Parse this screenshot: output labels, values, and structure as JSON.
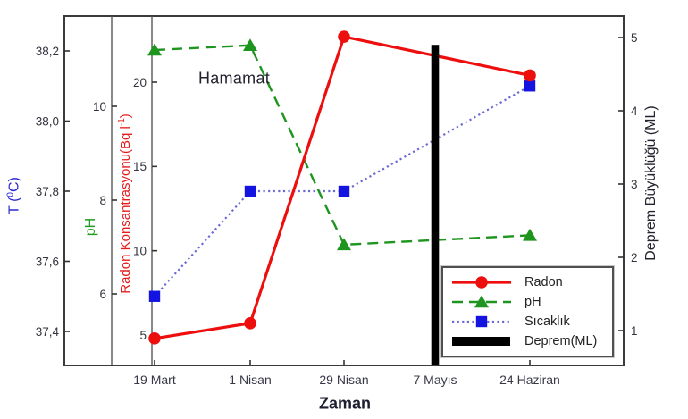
{
  "annotation": {
    "text": "Hamamat"
  },
  "axes": {
    "x": {
      "label": "Zaman",
      "categories": [
        "19 Mart",
        "1 Nisan",
        "29 Nisan",
        "7 Mayıs",
        "24 Haziran"
      ]
    },
    "temp": {
      "label_parts": {
        "pre": "T (",
        "sup": "0",
        "post": "C)"
      },
      "color": "#2b2bd1",
      "tick_values": [
        38.2,
        38.0,
        37.8,
        37.6,
        37.4
      ],
      "tick_labels": [
        "38,2",
        "38,0",
        "37,8",
        "37,6",
        "37,4"
      ]
    },
    "ph": {
      "label": "pH",
      "color": "#1f9e1f",
      "tick_values": [
        10,
        8,
        6
      ],
      "tick_labels": [
        "10",
        "8",
        "6"
      ]
    },
    "radon": {
      "label_parts": {
        "pre": "Radon Konsantrasyonu(Bq l",
        "sup": "-1",
        "post": ")"
      },
      "color": "#e51c1c",
      "tick_values": [
        20,
        15,
        10,
        5
      ],
      "tick_labels": [
        "20",
        "15",
        "10",
        "5"
      ]
    },
    "magnitude": {
      "label": "Deprem Büyüklüğü (ML)",
      "color": "#242430",
      "tick_values": [
        5,
        4,
        3,
        2,
        1
      ],
      "tick_labels": [
        "5",
        "4",
        "3",
        "2",
        "1"
      ]
    }
  },
  "legend": {
    "items": [
      {
        "label": "Radon"
      },
      {
        "label": "pH"
      },
      {
        "label": "Sıcaklık"
      },
      {
        "label": "Deprem(ML)"
      }
    ]
  },
  "chart_data": {
    "type": "line",
    "title": "Hamamat",
    "xlabel": "Zaman",
    "categories": [
      "19 Mart",
      "1 Nisan",
      "29 Nisan",
      "7 Mayıs",
      "24 Haziran"
    ],
    "series": [
      {
        "name": "Radon",
        "axis": "radon",
        "marker": "circle",
        "line_style": "solid",
        "color": "#ed0e0e",
        "x_idx": [
          0,
          1,
          2,
          4
        ],
        "values": [
          4.8,
          5.7,
          22.7,
          20.4
        ]
      },
      {
        "name": "pH",
        "axis": "ph",
        "marker": "triangle",
        "line_style": "dashed",
        "color": "#1e951e",
        "x_idx": [
          0,
          1,
          2,
          4
        ],
        "values": [
          11.2,
          11.3,
          7.05,
          7.25
        ]
      },
      {
        "name": "Sıcaklık",
        "axis": "temp",
        "marker": "square",
        "line_style": "dotted",
        "color": "#1414e0",
        "line_color": "#6a6ad4",
        "x_idx": [
          0,
          1,
          2,
          4
        ],
        "values": [
          37.5,
          37.8,
          37.8,
          38.1
        ]
      },
      {
        "name": "Deprem",
        "axis": "magnitude",
        "marker": "bar",
        "line_style": "none",
        "color": "#000000",
        "x_idx": [
          3
        ],
        "values": [
          4.9
        ]
      }
    ],
    "axis_ranges": {
      "temp": [
        37.3,
        38.3
      ],
      "ph": [
        5.3,
        11.6
      ],
      "radon": [
        3.2,
        23.6
      ],
      "magnitude": [
        0.6,
        5.3
      ]
    },
    "grid": false,
    "legend_position": "inside lower right"
  }
}
